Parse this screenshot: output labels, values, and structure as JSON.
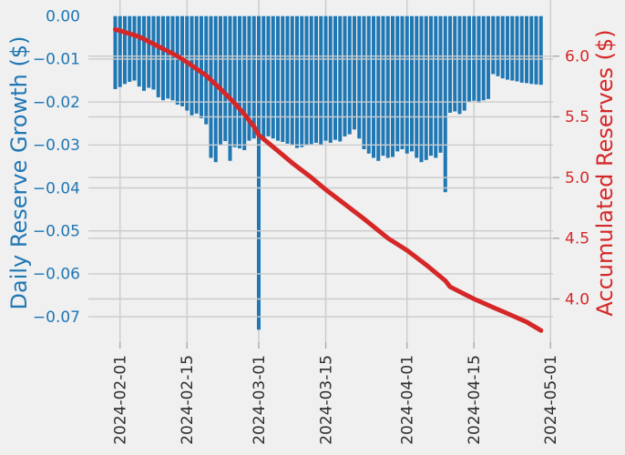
{
  "figure": {
    "background": "#f0f0f0",
    "grid_color": "#cbcbcb",
    "tick_mark_color": "#ababab"
  },
  "chart_data": {
    "type": "bar",
    "subtype": "dual-axis bar + line (daily bars, cumulative line)",
    "title": "",
    "x_axis": {
      "tick_labels": [
        "2024-02-01",
        "2024-02-15",
        "2024-03-01",
        "2024-03-15",
        "2024-04-01",
        "2024-04-15",
        "2024-05-01"
      ],
      "tick_day_offsets": [
        1,
        15,
        30,
        44,
        61,
        75,
        91
      ],
      "tick_color": "#2e2e2e",
      "grid": "on"
    },
    "left_axis": {
      "label": "Daily Reserve Growth ($)",
      "color": "#1f77b4",
      "tick_values": [
        0.0,
        -0.01,
        -0.02,
        -0.03,
        -0.04,
        -0.05,
        -0.06,
        -0.07
      ],
      "tick_labels": [
        "0.00",
        "−0.01",
        "−0.02",
        "−0.03",
        "−0.04",
        "−0.05",
        "−0.06",
        "−0.07"
      ],
      "ylim": [
        -0.0759,
        0.0037
      ]
    },
    "right_axis": {
      "label": "Accumulated Reserves ($)",
      "color": "#d62728",
      "tick_values": [
        6.0,
        5.5,
        5.0,
        4.5,
        4.0
      ],
      "tick_labels": [
        "6.0",
        "5.5",
        "5.0",
        "4.5",
        "4.0"
      ],
      "ylim": [
        3.64,
        6.46
      ]
    },
    "bars": {
      "name": "Daily Reserve Growth",
      "color": "#1f77b4",
      "values": [
        -0.017,
        -0.0165,
        -0.0158,
        -0.0153,
        -0.015,
        -0.0164,
        -0.0174,
        -0.0167,
        -0.0171,
        -0.0189,
        -0.0196,
        -0.0192,
        -0.0196,
        -0.0206,
        -0.021,
        -0.022,
        -0.0231,
        -0.0227,
        -0.0238,
        -0.0252,
        -0.033,
        -0.034,
        -0.0301,
        -0.0291,
        -0.0337,
        -0.0305,
        -0.0308,
        -0.0312,
        -0.029,
        -0.0285,
        -0.073,
        -0.0284,
        -0.028,
        -0.0285,
        -0.029,
        -0.0293,
        -0.0297,
        -0.03,
        -0.0307,
        -0.0305,
        -0.03,
        -0.0298,
        -0.0295,
        -0.03,
        -0.029,
        -0.0295,
        -0.0288,
        -0.0292,
        -0.028,
        -0.0275,
        -0.0264,
        -0.0285,
        -0.031,
        -0.032,
        -0.033,
        -0.0337,
        -0.0325,
        -0.033,
        -0.0328,
        -0.0315,
        -0.031,
        -0.032,
        -0.0315,
        -0.033,
        -0.034,
        -0.0335,
        -0.0325,
        -0.033,
        -0.0318,
        -0.041,
        -0.0225,
        -0.0222,
        -0.0228,
        -0.022,
        -0.02,
        -0.0197,
        -0.0202,
        -0.0196,
        -0.0193,
        -0.0135,
        -0.014,
        -0.0145,
        -0.0148,
        -0.015,
        -0.0152,
        -0.0155,
        -0.0156,
        -0.0158,
        -0.0159,
        -0.016
      ]
    },
    "line": {
      "name": "Accumulated Reserves",
      "color": "#d62728",
      "width": 5,
      "anchors": [
        [
          0,
          6.22
        ],
        [
          1,
          6.21
        ],
        [
          5,
          6.16
        ],
        [
          9,
          6.08
        ],
        [
          13,
          6.0
        ],
        [
          15,
          5.95
        ],
        [
          19,
          5.84
        ],
        [
          22,
          5.73
        ],
        [
          25,
          5.61
        ],
        [
          27,
          5.52
        ],
        [
          29,
          5.42
        ],
        [
          30,
          5.35
        ],
        [
          34,
          5.22
        ],
        [
          37,
          5.12
        ],
        [
          41,
          5.0
        ],
        [
          44,
          4.9
        ],
        [
          48,
          4.78
        ],
        [
          52,
          4.66
        ],
        [
          57,
          4.5
        ],
        [
          61,
          4.4
        ],
        [
          65,
          4.28
        ],
        [
          69,
          4.15
        ],
        [
          70,
          4.1
        ],
        [
          75,
          4.0
        ],
        [
          79,
          3.93
        ],
        [
          82,
          3.88
        ],
        [
          86,
          3.81
        ],
        [
          89,
          3.74
        ]
      ]
    }
  }
}
